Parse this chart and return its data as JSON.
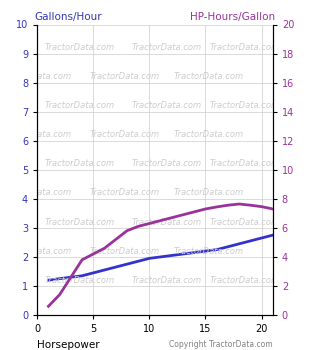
{
  "xlabel": "Horsepower",
  "ylabel_left": "Gallons/Hour",
  "ylabel_right": "HP-Hours/Gallon",
  "copyright": "Copyright TractorData.com",
  "watermark": "TractorData.com",
  "xlim": [
    0,
    21
  ],
  "ylim_left": [
    0,
    10
  ],
  "ylim_right": [
    0,
    20
  ],
  "yticks_left": [
    0,
    1,
    2,
    3,
    4,
    5,
    6,
    7,
    8,
    9,
    10
  ],
  "yticks_right": [
    0,
    2,
    4,
    6,
    8,
    10,
    12,
    14,
    16,
    18,
    20
  ],
  "xticks": [
    0,
    5,
    10,
    15,
    20
  ],
  "blue_line_x": [
    1,
    2,
    3,
    4,
    5,
    6,
    7,
    8,
    9,
    10,
    11,
    12,
    13,
    14,
    15,
    16,
    17,
    18,
    19,
    20,
    21
  ],
  "blue_line_y": [
    1.2,
    1.25,
    1.3,
    1.35,
    1.45,
    1.55,
    1.65,
    1.75,
    1.85,
    1.95,
    2.0,
    2.05,
    2.1,
    2.15,
    2.2,
    2.25,
    2.35,
    2.45,
    2.55,
    2.65,
    2.75
  ],
  "purple_line_x": [
    1,
    2,
    3,
    4,
    5,
    6,
    7,
    8,
    9,
    10,
    11,
    12,
    13,
    14,
    15,
    16,
    17,
    18,
    19,
    20,
    21
  ],
  "purple_line_y_right": [
    0.6,
    1.4,
    2.6,
    3.8,
    4.2,
    4.6,
    5.2,
    5.8,
    6.1,
    6.3,
    6.5,
    6.7,
    6.9,
    7.1,
    7.3,
    7.44,
    7.56,
    7.64,
    7.56,
    7.46,
    7.3
  ],
  "blue_color": "#3333cc",
  "purple_color": "#993399",
  "bg_color": "#ffffff",
  "watermark_color": "#cccccc",
  "ylabel_left_color": "#3333bb",
  "ylabel_right_color": "#993399",
  "grid_color": "#cccccc",
  "line_width": 2.0
}
